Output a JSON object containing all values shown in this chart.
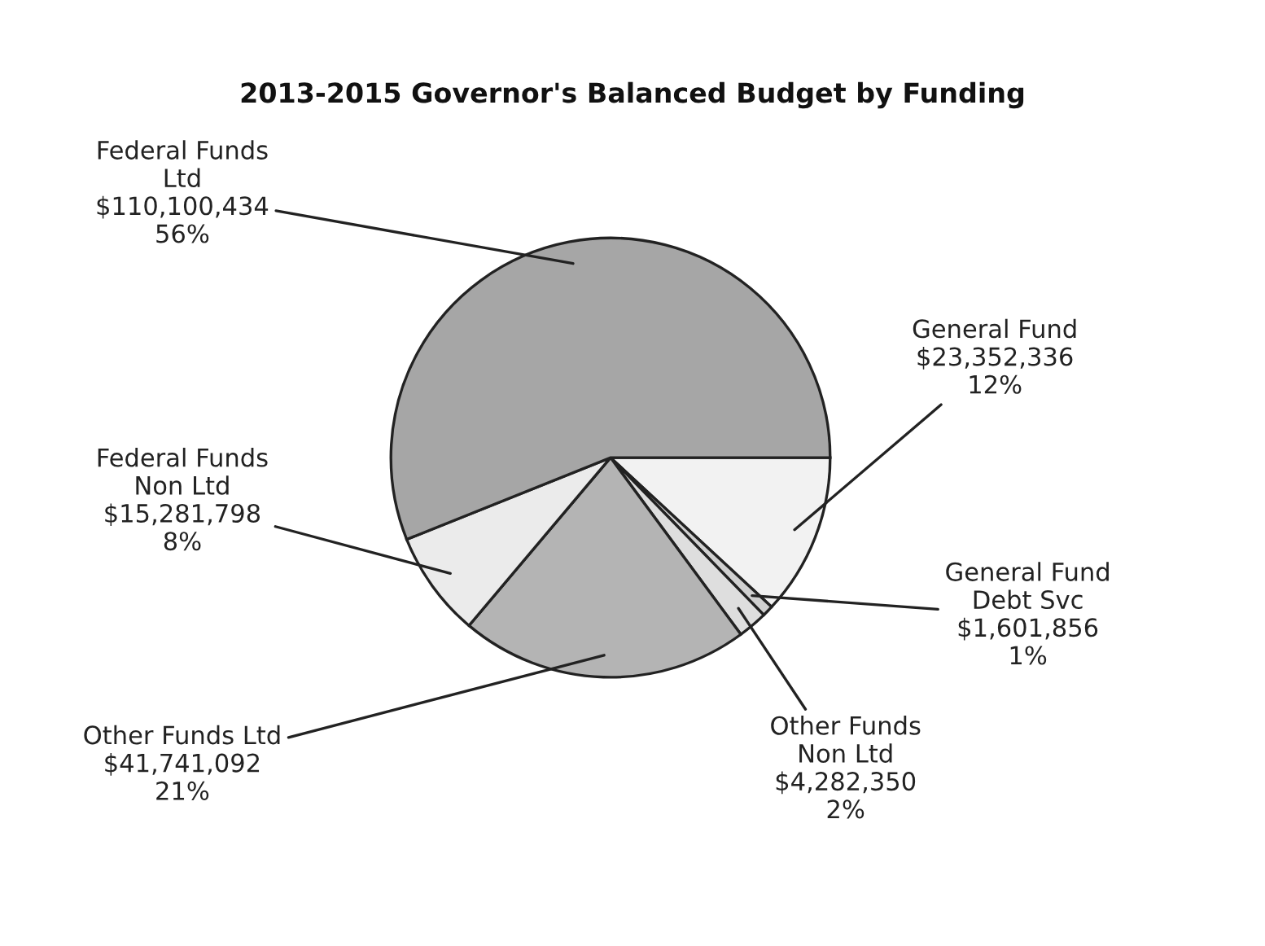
{
  "chart_data": {
    "type": "pie",
    "title": "2013-2015 Governor's Balanced Budget by Funding",
    "categories": [
      "General Fund",
      "General Fund\nDebt Svc",
      "Other Funds\nNon Ltd",
      "Other Funds Ltd",
      "Federal Funds\nNon Ltd",
      "Federal Funds\nLtd"
    ],
    "values": [
      23352336,
      1601856,
      4282350,
      41741092,
      15281798,
      110100434
    ],
    "value_labels": [
      "$23,352,336\n12%",
      "$1,601,856\n1%",
      "$4,282,350\n2%",
      "$41,741,092\n21%",
      "$15,281,798\n8%",
      "$110,100,434\n56%"
    ],
    "colors": [
      "#f2f2f2",
      "#d0d0d0",
      "#dedede",
      "#b4b4b4",
      "#ebebeb",
      "#a6a6a6"
    ]
  }
}
